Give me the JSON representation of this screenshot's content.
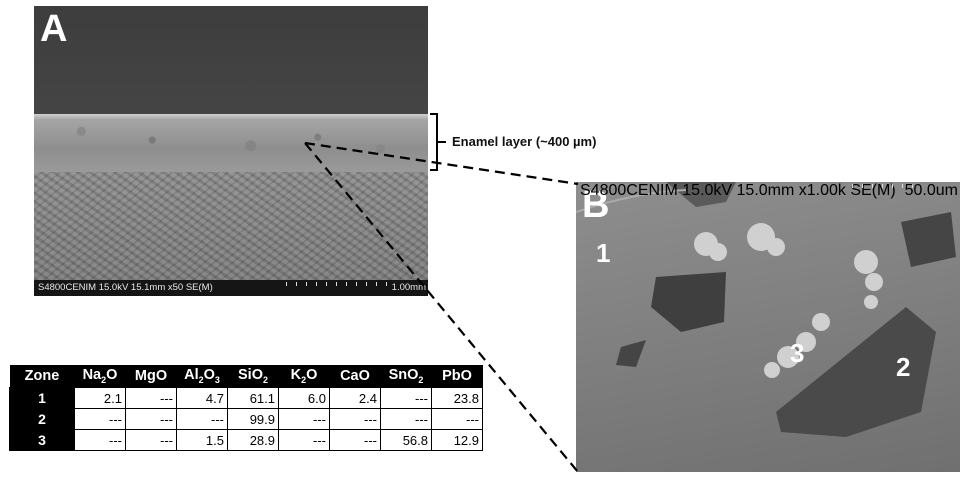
{
  "panel_a": {
    "label": "A",
    "footer_meta": "S4800CENIM 15.0kV 15.1mm x50 SE(M)",
    "footer_scale": "1.00mm"
  },
  "panel_b": {
    "label": "B",
    "zones": [
      "1",
      "3",
      "2"
    ],
    "footer_meta": "S4800CENIM 15.0kV 15.0mm x1.00k SE(M)",
    "footer_scale": "50.0um"
  },
  "annotation": "Enamel layer (~400 µm)",
  "table": {
    "header_zone": "Zone",
    "columns": [
      {
        "base": "Na",
        "sub": "2",
        "tail": "O"
      },
      {
        "base": "MgO",
        "sub": "",
        "tail": ""
      },
      {
        "base": "Al",
        "sub": "2",
        "tail": "O",
        "sub2": "3"
      },
      {
        "base": "SiO",
        "sub": "2",
        "tail": ""
      },
      {
        "base": "K",
        "sub": "2",
        "tail": "O"
      },
      {
        "base": "CaO",
        "sub": "",
        "tail": ""
      },
      {
        "base": "SnO",
        "sub": "2",
        "tail": ""
      },
      {
        "base": "PbO",
        "sub": "",
        "tail": ""
      }
    ],
    "rows": [
      {
        "zone": "1",
        "cells": [
          "2.1",
          "---",
          "4.7",
          "61.1",
          "6.0",
          "2.4",
          "---",
          "23.8"
        ]
      },
      {
        "zone": "2",
        "cells": [
          "---",
          "---",
          "---",
          "99.9",
          "---",
          "---",
          "---",
          "---"
        ]
      },
      {
        "zone": "3",
        "cells": [
          "---",
          "---",
          "1.5",
          "28.9",
          "---",
          "---",
          "56.8",
          "12.9"
        ]
      }
    ]
  }
}
